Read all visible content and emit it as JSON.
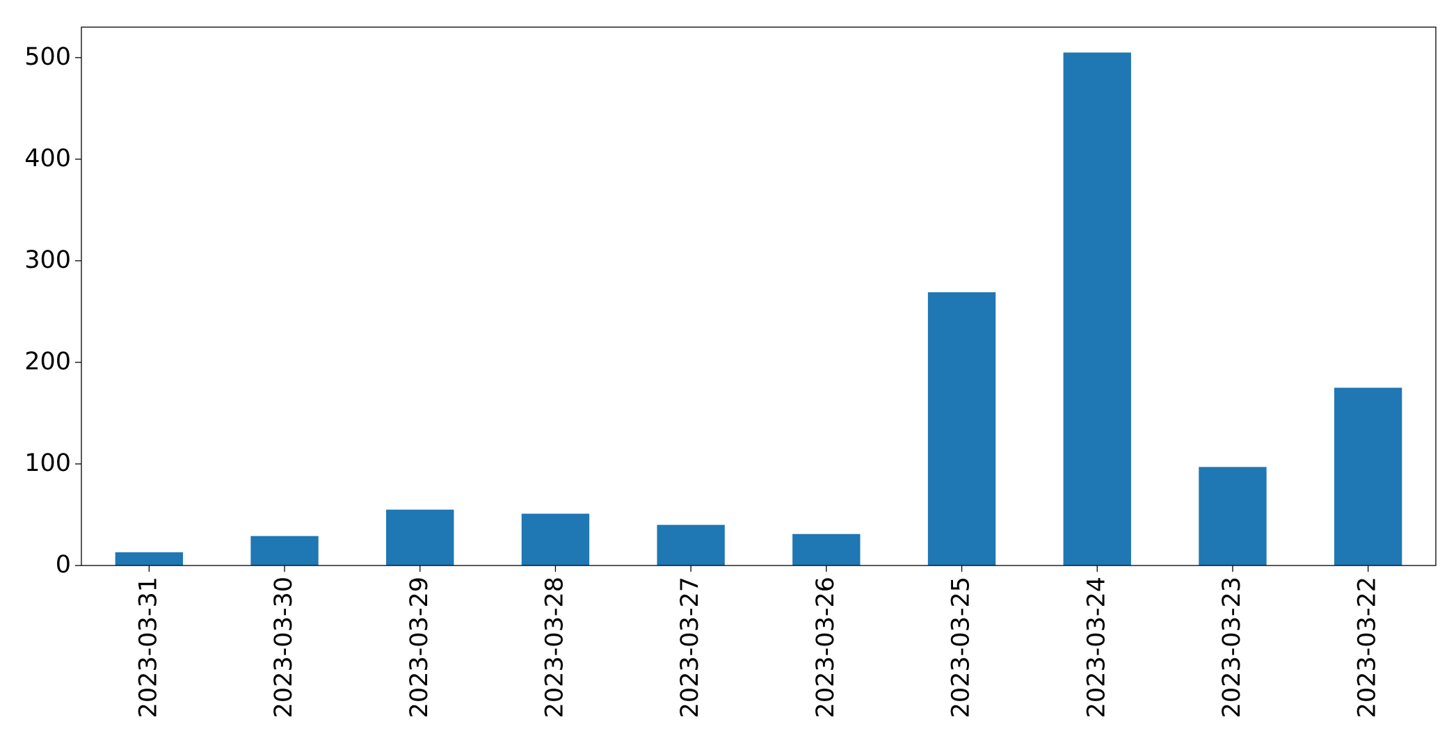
{
  "chart_data": {
    "type": "bar",
    "categories": [
      "2023-03-31",
      "2023-03-30",
      "2023-03-29",
      "2023-03-28",
      "2023-03-27",
      "2023-03-26",
      "2023-03-25",
      "2023-03-24",
      "2023-03-23",
      "2023-03-22"
    ],
    "values": [
      13,
      29,
      55,
      51,
      40,
      31,
      269,
      505,
      97,
      175
    ],
    "color": "#1f77b4",
    "ylim": [
      0,
      530
    ],
    "yticks": [
      0,
      100,
      200,
      300,
      400,
      500
    ],
    "grid": false
  }
}
